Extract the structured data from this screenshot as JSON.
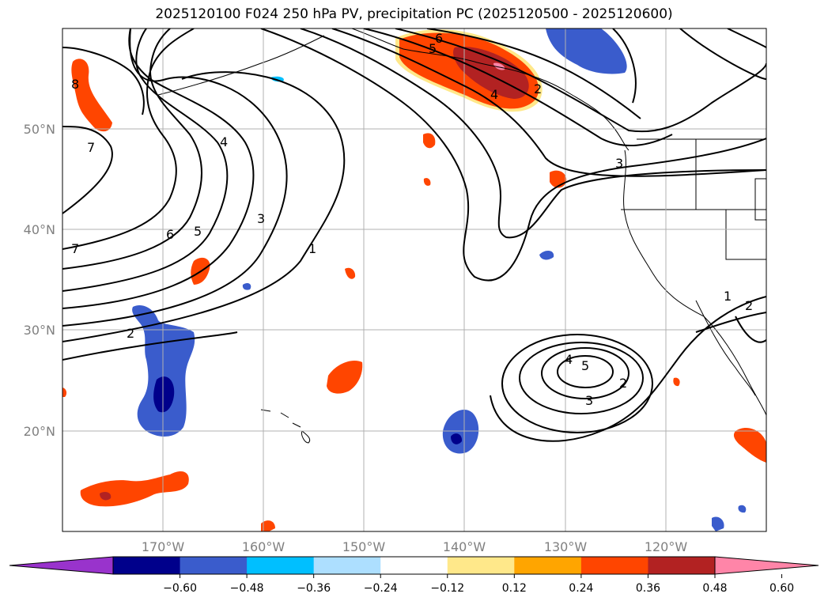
{
  "title": "2025120100 F024 250 hPa PV, precipitation PC (2025120500 - 2025120600)",
  "map": {
    "projection": "PlateCarree",
    "lon_range": [
      -180,
      -110
    ],
    "lat_range": [
      10,
      60
    ],
    "lat_ticks": [
      {
        "value": 50,
        "label": "50°N"
      },
      {
        "value": 40,
        "label": "40°N"
      },
      {
        "value": 30,
        "label": "30°N"
      },
      {
        "value": 20,
        "label": "20°N"
      }
    ],
    "lon_ticks": [
      {
        "value": -170,
        "label": "170°W"
      },
      {
        "value": -160,
        "label": "160°W"
      },
      {
        "value": -150,
        "label": "150°W"
      },
      {
        "value": -140,
        "label": "140°W"
      },
      {
        "value": -130,
        "label": "130°W"
      },
      {
        "value": -120,
        "label": "120°W"
      }
    ],
    "gridlines": true
  },
  "colorbar": {
    "extend": "both",
    "colors": [
      "#9933cc",
      "#00008b",
      "#3a5ccc",
      "#00bfff",
      "#addfff",
      "#ffffff",
      "#ffe88a",
      "#ffa500",
      "#ff4500",
      "#b22222",
      "#ff85a8"
    ],
    "tick_labels": [
      "−0.60",
      "−0.48",
      "−0.36",
      "−0.24",
      "−0.12",
      "0.12",
      "0.24",
      "0.36",
      "0.48",
      "0.60"
    ]
  },
  "contour_labels": [
    "6",
    "5",
    "4",
    "2",
    "8",
    "7",
    "4",
    "3",
    "6",
    "5",
    "7",
    "1",
    "2",
    "3",
    "1",
    "2",
    "4",
    "5",
    "3",
    "2"
  ],
  "legend_colors": {
    "orange": "#ff4500",
    "red": "#b22222",
    "pink": "#ff85a8",
    "yellow": "#ffe88a",
    "amber": "#ffa500",
    "blue": "#3a5ccc",
    "navy": "#00008b",
    "cyan": "#00bfff",
    "lightblue": "#addfff"
  }
}
